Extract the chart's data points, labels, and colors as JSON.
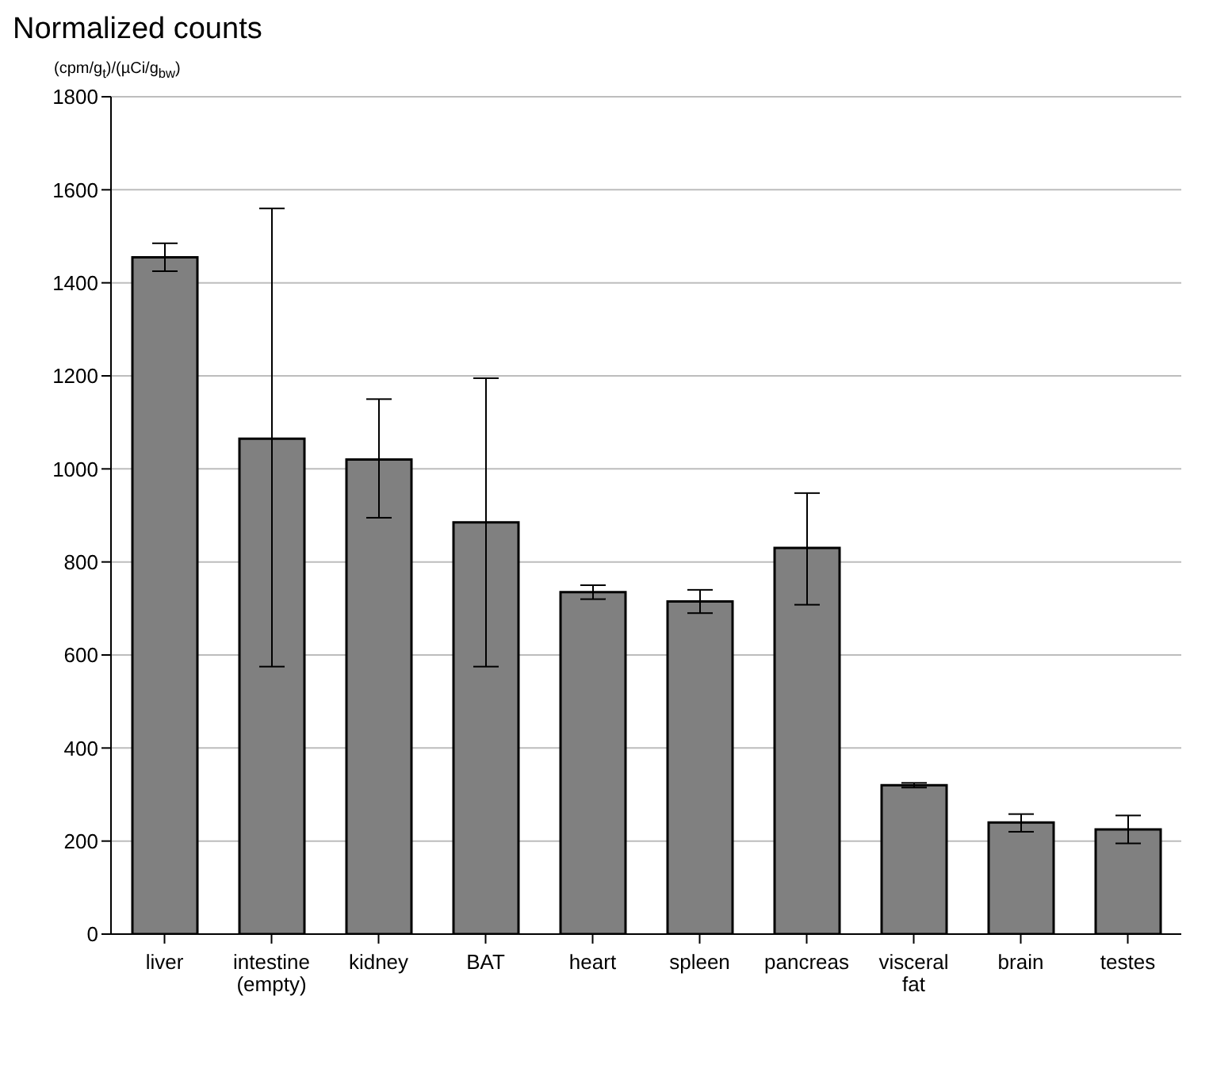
{
  "chart_data": {
    "type": "bar",
    "title": "Normalized counts",
    "ylabel": "(cpm/g$_{t}$)/(µCi/g$_{bw}$)",
    "categories": [
      "liver",
      "intestine (empty)",
      "kidney",
      "BAT",
      "heart",
      "spleen",
      "pancreas",
      "visceral fat",
      "brain",
      "testes"
    ],
    "values": [
      1455,
      1065,
      1020,
      885,
      735,
      715,
      830,
      320,
      240,
      225
    ],
    "errors": [
      [
        1425,
        1485
      ],
      [
        575,
        1560
      ],
      [
        895,
        1150
      ],
      [
        575,
        1195
      ],
      [
        720,
        750
      ],
      [
        690,
        740
      ],
      [
        708,
        948
      ],
      [
        315,
        325
      ],
      [
        220,
        258
      ],
      [
        195,
        255
      ]
    ],
    "color": "#808080",
    "ylim": [
      0,
      1800
    ],
    "yticks": [
      0,
      200,
      400,
      600,
      800,
      1000,
      1200,
      1400,
      1600,
      1800
    ],
    "grid": "y"
  }
}
